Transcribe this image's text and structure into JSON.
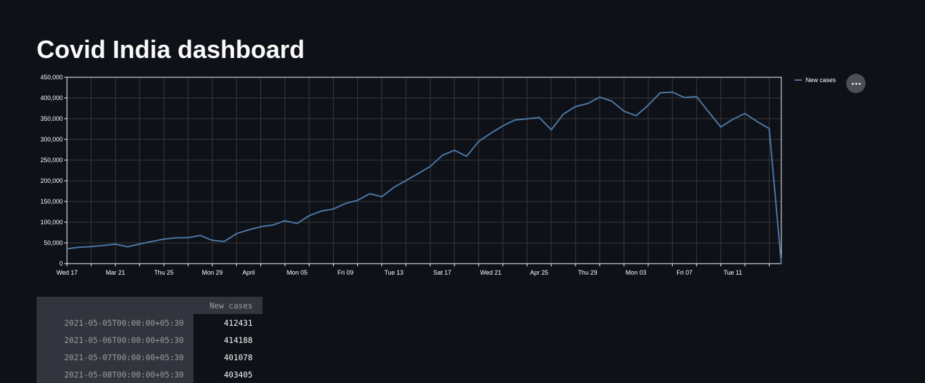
{
  "title": "Covid India dashboard",
  "legend": {
    "label": "New cases",
    "color": "#4c78a8"
  },
  "more_menu_icon": "ellipsis-icon",
  "colors": {
    "background": "#0e1117",
    "line": "#4c78a8",
    "grid": "#3a3a3a",
    "axis": "#ffffff"
  },
  "chart_data": {
    "type": "line",
    "title": "",
    "xlabel": "",
    "ylabel": "",
    "ylim": [
      0,
      450000
    ],
    "yticks": [
      "0",
      "50,000",
      "100,000",
      "150,000",
      "200,000",
      "250,000",
      "300,000",
      "350,000",
      "400,000",
      "450,000"
    ],
    "xticks": [
      {
        "date": "2021-03-17",
        "label": "Wed 17"
      },
      {
        "date": "2021-03-21",
        "label": "Mar 21"
      },
      {
        "date": "2021-03-25",
        "label": "Thu 25"
      },
      {
        "date": "2021-03-29",
        "label": "Mon 29"
      },
      {
        "date": "2021-04-01",
        "label": "April"
      },
      {
        "date": "2021-04-05",
        "label": "Mon 05"
      },
      {
        "date": "2021-04-09",
        "label": "Fri 09"
      },
      {
        "date": "2021-04-13",
        "label": "Tue 13"
      },
      {
        "date": "2021-04-17",
        "label": "Sat 17"
      },
      {
        "date": "2021-04-21",
        "label": "Wed 21"
      },
      {
        "date": "2021-04-25",
        "label": "Apr 25"
      },
      {
        "date": "2021-04-29",
        "label": "Thu 29"
      },
      {
        "date": "2021-05-03",
        "label": "Mon 03"
      },
      {
        "date": "2021-05-07",
        "label": "Fri 07"
      },
      {
        "date": "2021-05-11",
        "label": "Tue 11"
      }
    ],
    "grid": true,
    "legend_position": "top-right",
    "series": [
      {
        "name": "New cases",
        "x": [
          "2021-03-17",
          "2021-03-18",
          "2021-03-19",
          "2021-03-20",
          "2021-03-21",
          "2021-03-22",
          "2021-03-23",
          "2021-03-24",
          "2021-03-25",
          "2021-03-26",
          "2021-03-27",
          "2021-03-28",
          "2021-03-29",
          "2021-03-30",
          "2021-03-31",
          "2021-04-01",
          "2021-04-02",
          "2021-04-03",
          "2021-04-04",
          "2021-04-05",
          "2021-04-06",
          "2021-04-07",
          "2021-04-08",
          "2021-04-09",
          "2021-04-10",
          "2021-04-11",
          "2021-04-12",
          "2021-04-13",
          "2021-04-14",
          "2021-04-15",
          "2021-04-16",
          "2021-04-17",
          "2021-04-18",
          "2021-04-19",
          "2021-04-20",
          "2021-04-21",
          "2021-04-22",
          "2021-04-23",
          "2021-04-24",
          "2021-04-25",
          "2021-04-26",
          "2021-04-27",
          "2021-04-28",
          "2021-04-29",
          "2021-04-30",
          "2021-05-01",
          "2021-05-02",
          "2021-05-03",
          "2021-05-04",
          "2021-05-05",
          "2021-05-06",
          "2021-05-07",
          "2021-05-08",
          "2021-05-09",
          "2021-05-10",
          "2021-05-11",
          "2021-05-12",
          "2021-05-13",
          "2021-05-14",
          "2021-05-15"
        ],
        "y": [
          35871,
          39726,
          40953,
          43846,
          46951,
          40715,
          47262,
          53476,
          59118,
          62258,
          62714,
          68020,
          56211,
          53480,
          72330,
          81466,
          89129,
          93249,
          103558,
          96982,
          115736,
          126789,
          131968,
          145384,
          152879,
          168912,
          161736,
          184372,
          200739,
          217353,
          234692,
          261500,
          273810,
          259170,
          295041,
          314835,
          332730,
          346786,
          349691,
          352991,
          323144,
          360960,
          379257,
          386452,
          401993,
          392488,
          368147,
          357229,
          382315,
          412431,
          414188,
          401078,
          403405,
          366161,
          329942,
          348421,
          362727,
          343144,
          326098,
          0
        ]
      }
    ]
  },
  "table": {
    "column_header": "New cases",
    "rows": [
      {
        "date": "2021-05-05T00:00:00+05:30",
        "value": "412431"
      },
      {
        "date": "2021-05-06T00:00:00+05:30",
        "value": "414188"
      },
      {
        "date": "2021-05-07T00:00:00+05:30",
        "value": "401078"
      },
      {
        "date": "2021-05-08T00:00:00+05:30",
        "value": "403405"
      }
    ]
  }
}
